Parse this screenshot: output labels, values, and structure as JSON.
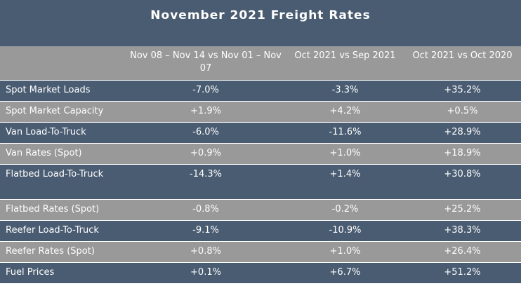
{
  "title": "November 2021 Freight Rates",
  "columns": [
    "",
    "Nov 08 – Nov 14 vs Nov 01 – Nov 07",
    "Oct 2021 vs Sep 2021",
    "Oct 2021 vs Oct 2020"
  ],
  "rows": [
    {
      "label": "Spot Market Loads",
      "v1": "-7.0%",
      "v2": "-3.3%",
      "v3": "+35.2%"
    },
    {
      "label": "Spot Market Capacity",
      "v1": "+1.9%",
      "v2": "+4.2%",
      "v3": "+0.5%"
    },
    {
      "label": "Van Load-To-Truck",
      "v1": "-6.0%",
      "v2": "-11.6%",
      "v3": "+28.9%"
    },
    {
      "label": "Van Rates (Spot)",
      "v1": "+0.9%",
      "v2": "+1.0%",
      "v3": "+18.9%"
    },
    {
      "label": "Flatbed Load-To-Truck",
      "v1": "-14.3%",
      "v2": "+1.4%",
      "v3": "+30.8%"
    },
    {
      "label": "Flatbed Rates (Spot)",
      "v1": "-0.8%",
      "v2": "-0.2%",
      "v3": "+25.2%"
    },
    {
      "label": "Reefer Load-To-Truck",
      "v1": "-9.1%",
      "v2": "-10.9%",
      "v3": "+38.3%"
    },
    {
      "label": "Reefer Rates (Spot)",
      "v1": "+0.8%",
      "v2": "+1.0%",
      "v3": "+26.4%"
    },
    {
      "label": "Fuel Prices",
      "v1": "+0.1%",
      "v2": "+6.7%",
      "v3": "+51.2%"
    }
  ]
}
